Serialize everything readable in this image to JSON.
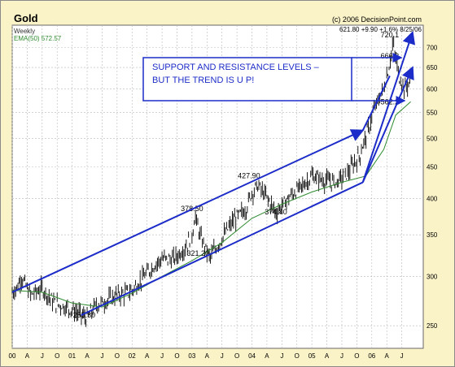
{
  "header": {
    "title": "Gold",
    "period": "Weekly",
    "ema_label": "EMA(50) 572.57",
    "copyright": "(c) 2006 DecisionPoint.com",
    "quote": "621.80  +9.90  +1.6%  8/25/06"
  },
  "annotation": {
    "line1": "SUPPORT AND RESISTANCE LEVELS –",
    "line2": "BUT THE TREND IS U P!"
  },
  "colors": {
    "background": "#fbf3c8",
    "price_bars": "#000000",
    "ema_line": "#2e8b2e",
    "annotation": "#1c2cc8",
    "grid": "#b9b9b9"
  },
  "chart_data": {
    "type": "line",
    "title": "Gold",
    "scale": "log",
    "grid": true,
    "ylim": [
      230,
      760
    ],
    "xlim": [
      2000.0,
      2006.75
    ],
    "y_ticks": [
      250,
      300,
      350,
      400,
      450,
      500,
      550,
      600,
      650,
      700
    ],
    "x_tick_labels": [
      {
        "t": 2000.0,
        "label": "00"
      },
      {
        "t": 2000.25,
        "label": "A"
      },
      {
        "t": 2000.5,
        "label": "J"
      },
      {
        "t": 2000.75,
        "label": "O"
      },
      {
        "t": 2001.0,
        "label": "01"
      },
      {
        "t": 2001.25,
        "label": "A"
      },
      {
        "t": 2001.5,
        "label": "J"
      },
      {
        "t": 2001.75,
        "label": "O"
      },
      {
        "t": 2002.0,
        "label": "02"
      },
      {
        "t": 2002.25,
        "label": "A"
      },
      {
        "t": 2002.5,
        "label": "J"
      },
      {
        "t": 2002.75,
        "label": "O"
      },
      {
        "t": 2003.0,
        "label": "03"
      },
      {
        "t": 2003.25,
        "label": "A"
      },
      {
        "t": 2003.5,
        "label": "J"
      },
      {
        "t": 2003.75,
        "label": "O"
      },
      {
        "t": 2004.0,
        "label": "04"
      },
      {
        "t": 2004.25,
        "label": "A"
      },
      {
        "t": 2004.5,
        "label": "J"
      },
      {
        "t": 2004.75,
        "label": "O"
      },
      {
        "t": 2005.0,
        "label": "05"
      },
      {
        "t": 2005.25,
        "label": "A"
      },
      {
        "t": 2005.5,
        "label": "J"
      },
      {
        "t": 2005.75,
        "label": "O"
      },
      {
        "t": 2006.0,
        "label": "06"
      },
      {
        "t": 2006.25,
        "label": "A"
      },
      {
        "t": 2006.5,
        "label": "J"
      }
    ],
    "price_series": {
      "x": [
        2000.0,
        2000.1,
        2000.15,
        2000.3,
        2000.5,
        2000.7,
        2000.9,
        2001.1,
        2001.25,
        2001.4,
        2001.6,
        2001.75,
        2001.9,
        2002.0,
        2002.2,
        2002.4,
        2002.5,
        2002.7,
        2002.9,
        2003.0,
        2003.05,
        2003.15,
        2003.3,
        2003.5,
        2003.7,
        2003.9,
        2004.0,
        2004.1,
        2004.3,
        2004.4,
        2004.6,
        2004.9,
        2005.0,
        2005.2,
        2005.4,
        2005.6,
        2005.8,
        2005.95,
        2006.05,
        2006.2,
        2006.3,
        2006.35,
        2006.45,
        2006.55,
        2006.65
      ],
      "y": [
        283,
        290,
        300,
        280,
        287,
        272,
        268,
        262,
        257,
        270,
        275,
        280,
        282,
        285,
        300,
        315,
        320,
        320,
        335,
        350,
        375,
        345,
        322,
        345,
        370,
        385,
        410,
        420,
        395,
        380,
        400,
        425,
        435,
        428,
        425,
        440,
        470,
        520,
        560,
        600,
        660,
        710,
        630,
        600,
        622
      ]
    },
    "ema_series": {
      "name": "EMA(50)",
      "x": [
        2000.0,
        2000.5,
        2001.0,
        2001.5,
        2002.0,
        2002.5,
        2003.0,
        2003.5,
        2004.0,
        2004.5,
        2005.0,
        2005.5,
        2005.9,
        2006.2,
        2006.4,
        2006.65
      ],
      "y": [
        285,
        283,
        272,
        268,
        282,
        300,
        318,
        340,
        372,
        392,
        410,
        425,
        435,
        480,
        545,
        572.57
      ]
    },
    "price_labels": [
      {
        "x": 2001.2,
        "y": 255.3,
        "text": "255.30"
      },
      {
        "x": 2003.0,
        "y": 378.5,
        "text": "378.50"
      },
      {
        "x": 2003.1,
        "y": 321.2,
        "text": "321.20"
      },
      {
        "x": 2003.95,
        "y": 427.9,
        "text": "427.90"
      },
      {
        "x": 2004.4,
        "y": 374.4,
        "text": "374.40"
      },
      {
        "x": 2006.3,
        "y": 720.1,
        "text": "720.1"
      },
      {
        "x": 2006.3,
        "y": 666.3,
        "text": "666.3"
      },
      {
        "x": 2006.3,
        "y": 562.2,
        "text": "562.2"
      }
    ],
    "annotations": {
      "channel_upper": [
        [
          2000.0,
          283
        ],
        [
          2005.85,
          515
        ]
      ],
      "channel_lower": [
        [
          2001.15,
          260
        ],
        [
          2005.85,
          425
        ]
      ],
      "steep_upper": [
        [
          2005.85,
          515
        ],
        [
          2006.3,
          630
        ]
      ],
      "steep_lower_arrows": [
        [
          [
            2005.85,
            425
          ],
          [
            2006.68,
            740
          ]
        ],
        [
          [
            2005.85,
            425
          ],
          [
            2006.68,
            650
          ]
        ]
      ]
    }
  }
}
